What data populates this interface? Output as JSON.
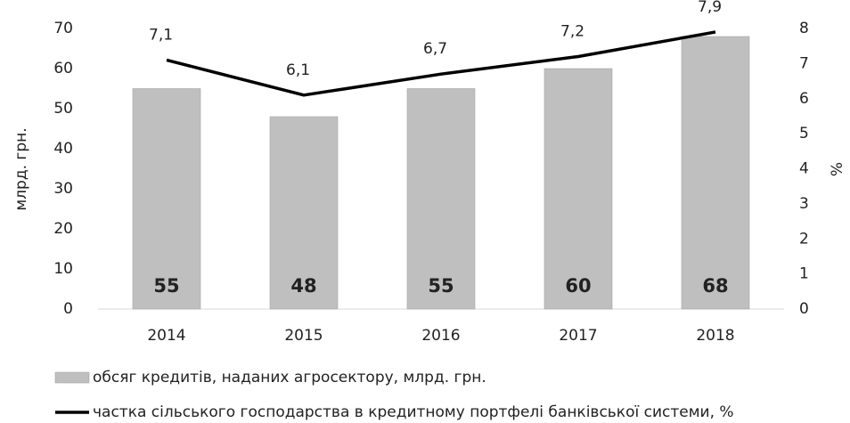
{
  "chart_data": {
    "type": "bar",
    "categories": [
      "2014",
      "2015",
      "2016",
      "2017",
      "2018"
    ],
    "series": [
      {
        "name": "обсяг кредитів, наданих агросектору, млрд. грн.",
        "type": "bar",
        "color": "#bfbfbf",
        "values": [
          55,
          48,
          55,
          60,
          68
        ]
      },
      {
        "name": "частка сільського господарства в кредитному портфелі банківської системи, %",
        "type": "line",
        "axis": "y2",
        "color": "#000000",
        "values": [
          7.1,
          6.1,
          6.7,
          7.2,
          7.9
        ],
        "value_labels": [
          "7,1",
          "6,1",
          "6,7",
          "7,2",
          "7,9"
        ]
      }
    ],
    "ylabel": "млрд. грн.",
    "y2label": "%",
    "ylim": [
      0,
      70
    ],
    "yticks": [
      0,
      10,
      20,
      30,
      40,
      50,
      60,
      70
    ],
    "y2lim": [
      0,
      8
    ],
    "y2ticks": [
      0,
      1,
      2,
      3,
      4,
      5,
      6,
      7,
      8
    ],
    "grid": false
  }
}
